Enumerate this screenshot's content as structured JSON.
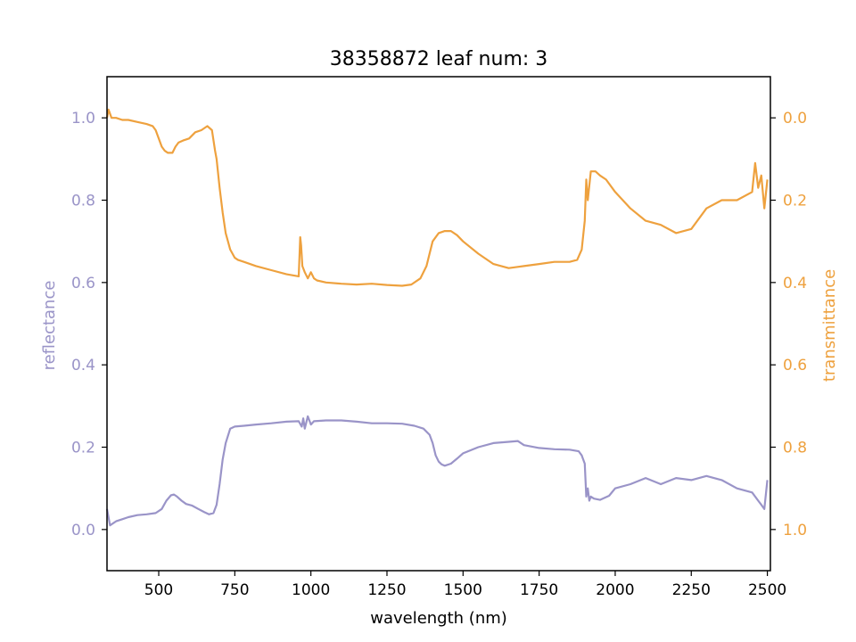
{
  "figure": {
    "title": "38358872 leaf num: 3"
  },
  "chart_data": {
    "type": "line",
    "title": "38358872 leaf num: 3",
    "xlabel": "wavelength (nm)",
    "ylabel_left": "reflectance",
    "ylabel_right": "transmittance",
    "xlim": [
      330,
      2510
    ],
    "ylim_left": [
      -0.1,
      1.1
    ],
    "ylim_right_inverted": [
      1.1,
      -0.1
    ],
    "grid": false,
    "x_ticks": [
      500,
      750,
      1000,
      1250,
      1500,
      1750,
      2000,
      2250,
      2500
    ],
    "x_tick_labels": [
      "500",
      "750",
      "1000",
      "1250",
      "1500",
      "1750",
      "2000",
      "2250",
      "2500"
    ],
    "y_left_ticks": [
      0.0,
      0.2,
      0.4,
      0.6,
      0.8,
      1.0
    ],
    "y_left_tick_labels": [
      "0.0",
      "0.2",
      "0.4",
      "0.6",
      "0.8",
      "1.0"
    ],
    "y_right_ticks": [
      0.0,
      0.2,
      0.4,
      0.6,
      0.8,
      1.0
    ],
    "y_right_tick_labels": [
      "0.0",
      "0.2",
      "0.4",
      "0.6",
      "0.8",
      "1.0"
    ],
    "colors": {
      "reflectance": "#9a94c8",
      "transmittance": "#eea13e",
      "axis": "#000000"
    },
    "series": [
      {
        "axis": "left",
        "x": [
          330,
          340,
          360,
          380,
          400,
          430,
          460,
          490,
          510,
          525,
          540,
          550,
          560,
          575,
          590,
          610,
          630,
          650,
          665,
          680,
          690,
          700,
          710,
          720,
          735,
          750,
          780,
          820,
          870,
          920,
          960,
          970,
          975,
          980,
          990,
          1000,
          1010,
          1050,
          1100,
          1150,
          1200,
          1250,
          1300,
          1340,
          1370,
          1390,
          1400,
          1410,
          1420,
          1430,
          1440,
          1460,
          1480,
          1500,
          1550,
          1600,
          1650,
          1680,
          1700,
          1750,
          1800,
          1850,
          1880,
          1890,
          1900,
          1905,
          1910,
          1915,
          1920,
          1930,
          1950,
          1980,
          2000,
          2050,
          2100,
          2150,
          2200,
          2250,
          2300,
          2350,
          2400,
          2450,
          2470,
          2480,
          2490,
          2500
        ],
        "values": [
          0.05,
          0.01,
          0.02,
          0.025,
          0.03,
          0.035,
          0.037,
          0.04,
          0.05,
          0.07,
          0.083,
          0.085,
          0.08,
          0.07,
          0.062,
          0.058,
          0.05,
          0.042,
          0.037,
          0.04,
          0.06,
          0.11,
          0.17,
          0.21,
          0.245,
          0.25,
          0.252,
          0.255,
          0.258,
          0.262,
          0.263,
          0.25,
          0.27,
          0.245,
          0.275,
          0.255,
          0.263,
          0.265,
          0.265,
          0.262,
          0.258,
          0.258,
          0.257,
          0.252,
          0.245,
          0.23,
          0.21,
          0.18,
          0.165,
          0.158,
          0.155,
          0.16,
          0.172,
          0.185,
          0.2,
          0.21,
          0.213,
          0.215,
          0.205,
          0.198,
          0.195,
          0.194,
          0.19,
          0.18,
          0.16,
          0.08,
          0.1,
          0.07,
          0.08,
          0.075,
          0.072,
          0.082,
          0.1,
          0.11,
          0.125,
          0.11,
          0.125,
          0.12,
          0.13,
          0.12,
          0.1,
          0.09,
          0.07,
          0.06,
          0.05,
          0.12
        ]
      },
      {
        "axis": "right",
        "x": [
          330,
          335,
          345,
          360,
          380,
          400,
          430,
          460,
          480,
          490,
          500,
          510,
          520,
          530,
          545,
          555,
          565,
          580,
          600,
          620,
          640,
          660,
          675,
          685,
          690,
          700,
          710,
          720,
          735,
          750,
          760,
          780,
          820,
          870,
          920,
          960,
          965,
          968,
          972,
          980,
          990,
          1000,
          1010,
          1020,
          1050,
          1100,
          1150,
          1200,
          1250,
          1300,
          1330,
          1360,
          1380,
          1400,
          1420,
          1440,
          1460,
          1480,
          1500,
          1550,
          1600,
          1650,
          1680,
          1700,
          1750,
          1800,
          1850,
          1875,
          1890,
          1900,
          1905,
          1910,
          1920,
          1935,
          1950,
          1970,
          2000,
          2050,
          2100,
          2150,
          2200,
          2250,
          2300,
          2350,
          2400,
          2450,
          2460,
          2470,
          2480,
          2490,
          2500
        ],
        "values": [
          0.0,
          -0.02,
          0.0,
          0.0,
          0.005,
          0.005,
          0.01,
          0.015,
          0.02,
          0.03,
          0.05,
          0.07,
          0.08,
          0.085,
          0.085,
          0.07,
          0.06,
          0.055,
          0.05,
          0.035,
          0.03,
          0.02,
          0.03,
          0.08,
          0.1,
          0.17,
          0.23,
          0.28,
          0.32,
          0.34,
          0.345,
          0.35,
          0.36,
          0.37,
          0.38,
          0.385,
          0.29,
          0.31,
          0.36,
          0.375,
          0.39,
          0.375,
          0.39,
          0.395,
          0.4,
          0.403,
          0.405,
          0.403,
          0.406,
          0.408,
          0.405,
          0.39,
          0.36,
          0.3,
          0.28,
          0.275,
          0.275,
          0.285,
          0.3,
          0.33,
          0.355,
          0.365,
          0.362,
          0.36,
          0.355,
          0.35,
          0.35,
          0.345,
          0.32,
          0.25,
          0.15,
          0.2,
          0.13,
          0.13,
          0.14,
          0.15,
          0.18,
          0.22,
          0.25,
          0.26,
          0.28,
          0.27,
          0.22,
          0.2,
          0.2,
          0.18,
          0.11,
          0.17,
          0.14,
          0.22,
          0.15
        ]
      }
    ]
  }
}
